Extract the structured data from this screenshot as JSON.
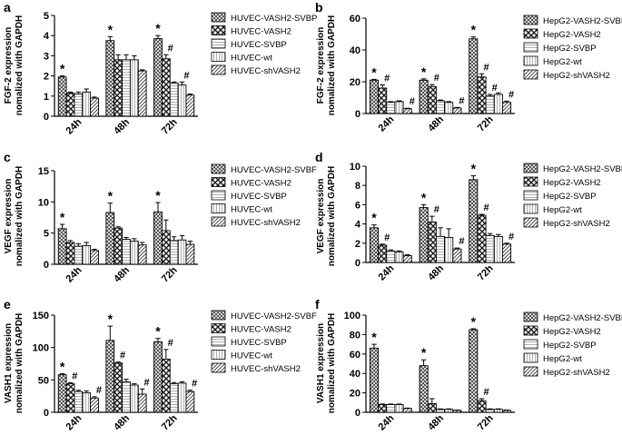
{
  "figure": {
    "colors": {
      "ink": "#000000",
      "bar_fill": "#ffffff",
      "hatch_dark": "#3a3a3a",
      "hatch_light": "#9a9a9a"
    },
    "legend_patterns": [
      "crosshatch",
      "diag-check",
      "horizontal",
      "vertical",
      "diagonal"
    ]
  },
  "chart_data": [
    {
      "panel_label": "a",
      "type": "bar",
      "ylabel_line1": "FGF-2 expression",
      "ylabel_line2": "nomalized with GAPDH",
      "ylim": [
        0,
        5
      ],
      "yticks": [
        "0",
        "1",
        "2",
        "3",
        "4",
        "5"
      ],
      "tick_values": [
        0,
        1,
        2,
        3,
        4,
        5
      ],
      "categories": [
        "24h",
        "48h",
        "72h"
      ],
      "series": [
        {
          "name": "HUVEC-VASH2-SVBP",
          "values": [
            1.95,
            3.75,
            3.85
          ],
          "errors": [
            0.05,
            0.2,
            0.15
          ]
        },
        {
          "name": "HUVEC-VASH2",
          "values": [
            1.15,
            2.8,
            2.85
          ],
          "errors": [
            0.05,
            0.25,
            0.2
          ]
        },
        {
          "name": "HUVEC-SVBP",
          "values": [
            1.1,
            2.8,
            1.65
          ],
          "errors": [
            0.1,
            0.25,
            0.05
          ]
        },
        {
          "name": "HUVEC-wt",
          "values": [
            1.2,
            2.8,
            1.55
          ],
          "errors": [
            0.15,
            0.2,
            0.15
          ]
        },
        {
          "name": "HUVEC-shVASH2",
          "values": [
            0.9,
            2.25,
            1.05
          ],
          "errors": [
            0.05,
            0.05,
            0.05
          ]
        }
      ],
      "annotations": [
        {
          "category": 0,
          "series": 0,
          "text": "*"
        },
        {
          "category": 1,
          "series": 0,
          "text": "*"
        },
        {
          "category": 2,
          "series": 0,
          "text": "*"
        },
        {
          "category": 2,
          "series": 1,
          "text": "#"
        },
        {
          "category": 2,
          "series": 3,
          "text": "#"
        }
      ]
    },
    {
      "panel_label": "b",
      "type": "bar",
      "ylabel_line1": "FGF-2 expression",
      "ylabel_line2": "nomalized with GAPDH",
      "ylim": [
        0,
        60
      ],
      "yticks": [
        "0",
        "20",
        "40",
        "60"
      ],
      "tick_values": [
        0,
        20,
        40,
        60
      ],
      "categories": [
        "24h",
        "48h",
        "72h"
      ],
      "series": [
        {
          "name": "HepG2-VASH2-SVBP",
          "values": [
            21,
            21,
            47
          ],
          "errors": [
            0.5,
            0.8,
            1.2
          ]
        },
        {
          "name": "HepG2-VASH2",
          "values": [
            16,
            17,
            23
          ],
          "errors": [
            2,
            1.2,
            2
          ]
        },
        {
          "name": "HepG2-SVBP",
          "values": [
            7,
            8,
            11
          ],
          "errors": [
            0.5,
            0.5,
            1
          ]
        },
        {
          "name": "HepG2-wt",
          "values": [
            7.5,
            7,
            12
          ],
          "errors": [
            0.5,
            0.5,
            1
          ]
        },
        {
          "name": "HepG2-shVASH2",
          "values": [
            3,
            3.5,
            7
          ],
          "errors": [
            0.3,
            0.3,
            0.8
          ]
        }
      ],
      "annotations": [
        {
          "category": 0,
          "series": 0,
          "text": "*"
        },
        {
          "category": 0,
          "series": 1,
          "text": "#"
        },
        {
          "category": 0,
          "series": 4,
          "text": "#"
        },
        {
          "category": 1,
          "series": 0,
          "text": "*"
        },
        {
          "category": 1,
          "series": 1,
          "text": "#"
        },
        {
          "category": 1,
          "series": 4,
          "text": "#"
        },
        {
          "category": 2,
          "series": 0,
          "text": "*"
        },
        {
          "category": 2,
          "series": 1,
          "text": "#"
        },
        {
          "category": 2,
          "series": 2,
          "text": "#"
        },
        {
          "category": 2,
          "series": 4,
          "text": "#"
        }
      ]
    },
    {
      "panel_label": "c",
      "type": "bar",
      "ylabel_line1": "VEGF expression",
      "ylabel_line2": "nomalized with GAPDH",
      "ylim": [
        0,
        15
      ],
      "yticks": [
        "0",
        "5",
        "10",
        "15"
      ],
      "tick_values": [
        0,
        5,
        10,
        15
      ],
      "categories": [
        "24h",
        "48h",
        "72h"
      ],
      "series": [
        {
          "name": "HUVEC-VASH2-SVBF",
          "values": [
            5.7,
            8.3,
            8.4
          ],
          "errors": [
            0.7,
            1.5,
            1.5
          ]
        },
        {
          "name": "HUVEC-VASH2",
          "values": [
            3.5,
            5.8,
            5.4
          ],
          "errors": [
            0.3,
            0.2,
            1.7
          ]
        },
        {
          "name": "HUVEC-SVBP",
          "values": [
            2.9,
            4.0,
            3.8
          ],
          "errors": [
            0.4,
            0.3,
            0.6
          ]
        },
        {
          "name": "HUVEC-wt",
          "values": [
            3.0,
            3.7,
            3.9
          ],
          "errors": [
            0.5,
            0.4,
            0.7
          ]
        },
        {
          "name": "HUVEC-shVASH2",
          "values": [
            2.2,
            3.1,
            3.2
          ],
          "errors": [
            0.2,
            0.4,
            0.5
          ]
        }
      ],
      "annotations": [
        {
          "category": 0,
          "series": 0,
          "text": "*"
        },
        {
          "category": 1,
          "series": 0,
          "text": "*"
        },
        {
          "category": 2,
          "series": 0,
          "text": "*"
        }
      ]
    },
    {
      "panel_label": "d",
      "type": "bar",
      "ylabel_line1": "VEGF expression",
      "ylabel_line2": "nomalized with GAPDH",
      "ylim": [
        0,
        10
      ],
      "yticks": [
        "0",
        "2",
        "4",
        "6",
        "8",
        "10"
      ],
      "tick_values": [
        0,
        2,
        4,
        6,
        8,
        10
      ],
      "categories": [
        "24h",
        "48h",
        "72h"
      ],
      "series": [
        {
          "name": "HepG2-VASH2-SVBP",
          "values": [
            3.6,
            5.7,
            8.6
          ],
          "errors": [
            0.3,
            0.3,
            0.4
          ]
        },
        {
          "name": "HepG2-VASH2",
          "values": [
            1.8,
            4.2,
            4.9
          ],
          "errors": [
            0.1,
            0.6,
            0.1
          ]
        },
        {
          "name": "HepG2-SVBP",
          "values": [
            1.2,
            2.7,
            2.8
          ],
          "errors": [
            0.1,
            0.9,
            0.2
          ]
        },
        {
          "name": "HepG2-wt",
          "values": [
            1.1,
            2.6,
            2.7
          ],
          "errors": [
            0.1,
            0.9,
            0.2
          ]
        },
        {
          "name": "HepG2-shVASH2",
          "values": [
            0.7,
            1.4,
            1.9
          ],
          "errors": [
            0.1,
            0.1,
            0.1
          ]
        }
      ],
      "annotations": [
        {
          "category": 0,
          "series": 0,
          "text": "*"
        },
        {
          "category": 0,
          "series": 1,
          "text": "#"
        },
        {
          "category": 1,
          "series": 0,
          "text": "*"
        },
        {
          "category": 1,
          "series": 1,
          "text": "#"
        },
        {
          "category": 1,
          "series": 4,
          "text": "#"
        },
        {
          "category": 2,
          "series": 0,
          "text": "*"
        },
        {
          "category": 2,
          "series": 1,
          "text": "#"
        },
        {
          "category": 2,
          "series": 4,
          "text": "#"
        }
      ]
    },
    {
      "panel_label": "e",
      "type": "bar",
      "ylabel_line1": "VASH1 expression",
      "ylabel_line2": "nomalized with GAPDH",
      "ylim": [
        0,
        150
      ],
      "yticks": [
        "0",
        "50",
        "100",
        "150"
      ],
      "tick_values": [
        0,
        50,
        100,
        150
      ],
      "categories": [
        "24h",
        "48h",
        "72h"
      ],
      "series": [
        {
          "name": "HUVEC-VASH2-SVBF",
          "values": [
            58,
            111,
            109
          ],
          "errors": [
            1.5,
            22,
            5
          ]
        },
        {
          "name": "HUVEC-VASH2",
          "values": [
            44,
            76,
            82
          ],
          "errors": [
            1.5,
            1.5,
            15
          ]
        },
        {
          "name": "HUVEC-SVBP",
          "values": [
            32,
            47,
            44
          ],
          "errors": [
            2,
            4,
            2
          ]
        },
        {
          "name": "HUVEC-wt",
          "values": [
            30,
            42,
            45
          ],
          "errors": [
            3,
            2,
            2
          ]
        },
        {
          "name": "HUVEC-shVASH2",
          "values": [
            22,
            28,
            32
          ],
          "errors": [
            2,
            8,
            2
          ]
        }
      ],
      "annotations": [
        {
          "category": 0,
          "series": 0,
          "text": "*"
        },
        {
          "category": 0,
          "series": 1,
          "text": "#"
        },
        {
          "category": 0,
          "series": 4,
          "text": "#"
        },
        {
          "category": 1,
          "series": 0,
          "text": "*"
        },
        {
          "category": 1,
          "series": 1,
          "text": "#"
        },
        {
          "category": 1,
          "series": 4,
          "text": "#"
        },
        {
          "category": 2,
          "series": 0,
          "text": "*"
        },
        {
          "category": 2,
          "series": 1,
          "text": "#"
        },
        {
          "category": 2,
          "series": 4,
          "text": "#"
        }
      ]
    },
    {
      "panel_label": "f",
      "type": "bar",
      "ylabel_line1": "VASH1 expression",
      "ylabel_line2": "nomalized with GAPDH",
      "ylim": [
        0,
        100
      ],
      "yticks": [
        "0",
        "20",
        "40",
        "60",
        "80",
        "100"
      ],
      "tick_values": [
        0,
        20,
        40,
        60,
        80,
        100
      ],
      "categories": [
        "24h",
        "48h",
        "72h"
      ],
      "series": [
        {
          "name": "HepG2-VASH2-SVBP",
          "values": [
            66,
            48,
            85
          ],
          "errors": [
            4,
            6,
            1
          ]
        },
        {
          "name": "HepG2-VASH2",
          "values": [
            8,
            9,
            12
          ],
          "errors": [
            0.5,
            5,
            2
          ]
        },
        {
          "name": "HepG2-SVBP",
          "values": [
            8,
            3,
            3
          ],
          "errors": [
            0.5,
            0.5,
            0.5
          ]
        },
        {
          "name": "HepG2-wt",
          "values": [
            8,
            3,
            3
          ],
          "errors": [
            0.5,
            0.5,
            0.5
          ]
        },
        {
          "name": "HepG2-shVASH2",
          "values": [
            4,
            2,
            2
          ],
          "errors": [
            0.3,
            0.3,
            0.3
          ]
        }
      ],
      "annotations": [
        {
          "category": 0,
          "series": 0,
          "text": "*"
        },
        {
          "category": 1,
          "series": 0,
          "text": "*"
        },
        {
          "category": 2,
          "series": 0,
          "text": "*"
        },
        {
          "category": 2,
          "series": 1,
          "text": "#"
        }
      ]
    }
  ]
}
